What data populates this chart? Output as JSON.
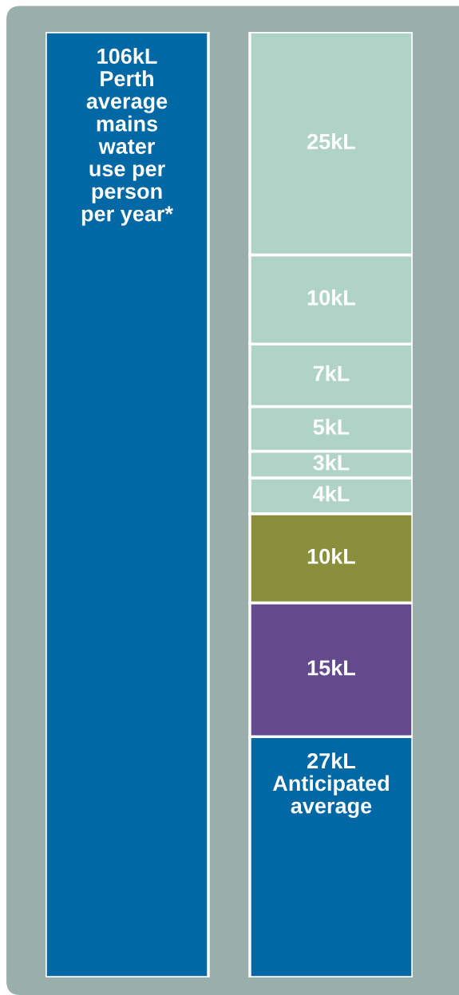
{
  "chart_data": {
    "type": "bar",
    "stacked": true,
    "categories": [
      null,
      null
    ],
    "series": [
      {
        "values": [
          106,
          27
        ],
        "colors": [
          "#0068a5",
          "#0068a5"
        ],
        "value_labels": [
          "106kL\nPerth\naverage\nmains\nwater\nuse per\nperson\nper year*",
          "27kL\nAnticipated\naverage"
        ]
      },
      {
        "values": [
          null,
          15
        ],
        "color": "#634a8d",
        "value_labels": [
          null,
          "15kL"
        ]
      },
      {
        "values": [
          null,
          10
        ],
        "color": "#8a8f3c",
        "value_labels": [
          null,
          "10kL"
        ]
      },
      {
        "values": [
          null,
          4
        ],
        "color": "#b0d3c8",
        "value_labels": [
          null,
          "4kL"
        ]
      },
      {
        "values": [
          null,
          3
        ],
        "color": "#b0d3c8",
        "value_labels": [
          null,
          "3kL"
        ]
      },
      {
        "values": [
          null,
          5
        ],
        "color": "#b0d3c8",
        "value_labels": [
          null,
          "5kL"
        ]
      },
      {
        "values": [
          null,
          7
        ],
        "color": "#b0d3c8",
        "value_labels": [
          null,
          "7kL"
        ]
      },
      {
        "values": [
          null,
          10
        ],
        "color": "#b0d3c8",
        "value_labels": [
          null,
          "10kL"
        ]
      },
      {
        "values": [
          null,
          25
        ],
        "color": "#b0d3c8",
        "value_labels": [
          null,
          "25kL"
        ]
      }
    ],
    "tick_labels": false
  }
}
